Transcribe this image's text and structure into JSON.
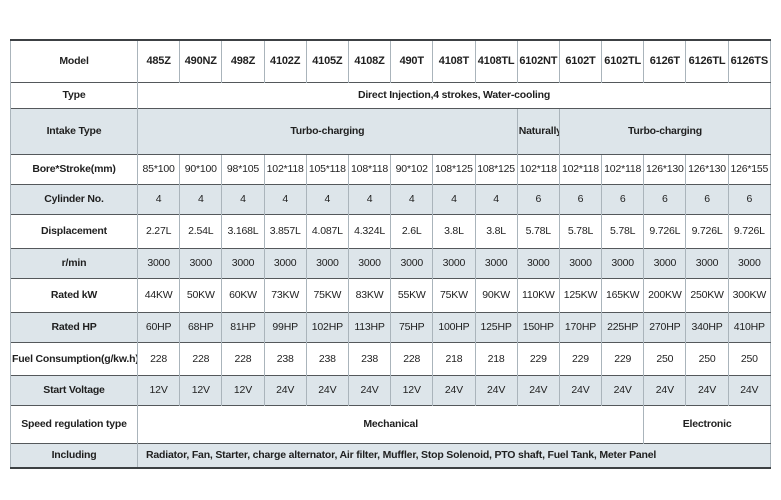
{
  "table": {
    "rows": [
      {
        "id": "model",
        "label": "Model",
        "cells": [
          "485Z",
          "490NZ",
          "498Z",
          "4102Z",
          "4105Z",
          "4108Z",
          "490T",
          "4108T",
          "4108TL",
          "6102NT",
          "6102T",
          "6102TL",
          "6126T",
          "6126TL",
          "6126TS"
        ]
      },
      {
        "id": "type",
        "label": "Type",
        "cells": [
          "Direct Injection,4 strokes, Water-cooling"
        ],
        "spans": [
          15
        ]
      },
      {
        "id": "intake",
        "label": "Intake Type",
        "cells": [
          "Turbo-charging",
          "Naturally",
          "Turbo-charging"
        ],
        "spans": [
          9,
          1,
          5
        ]
      },
      {
        "id": "bore_stroke",
        "label": "Bore*Stroke(mm)",
        "cells": [
          "85*100",
          "90*100",
          "98*105",
          "102*118",
          "105*118",
          "108*118",
          "90*102",
          "108*125",
          "108*125",
          "102*118",
          "102*118",
          "102*118",
          "126*130",
          "126*130",
          "126*155"
        ]
      },
      {
        "id": "cylinder_no",
        "label": "Cylinder No.",
        "cells": [
          "4",
          "4",
          "4",
          "4",
          "4",
          "4",
          "4",
          "4",
          "4",
          "6",
          "6",
          "6",
          "6",
          "6",
          "6"
        ]
      },
      {
        "id": "displacement",
        "label": "Displacement",
        "cells": [
          "2.27L",
          "2.54L",
          "3.168L",
          "3.857L",
          "4.087L",
          "4.324L",
          "2.6L",
          "3.8L",
          "3.8L",
          "5.78L",
          "5.78L",
          "5.78L",
          "9.726L",
          "9.726L",
          "9.726L"
        ]
      },
      {
        "id": "rpm",
        "label": "r/min",
        "cells": [
          "3000",
          "3000",
          "3000",
          "3000",
          "3000",
          "3000",
          "3000",
          "3000",
          "3000",
          "3000",
          "3000",
          "3000",
          "3000",
          "3000",
          "3000"
        ]
      },
      {
        "id": "rated_kw",
        "label": "Rated kW",
        "cells": [
          "44KW",
          "50KW",
          "60KW",
          "73KW",
          "75KW",
          "83KW",
          "55KW",
          "75KW",
          "90KW",
          "110KW",
          "125KW",
          "165KW",
          "200KW",
          "250KW",
          "300KW"
        ]
      },
      {
        "id": "rated_hp",
        "label": "Rated HP",
        "cells": [
          "60HP",
          "68HP",
          "81HP",
          "99HP",
          "102HP",
          "113HP",
          "75HP",
          "100HP",
          "125HP",
          "150HP",
          "170HP",
          "225HP",
          "270HP",
          "340HP",
          "410HP"
        ]
      },
      {
        "id": "fuel",
        "label": "Fuel Consumption(g/kw.h)",
        "cells": [
          "228",
          "228",
          "228",
          "238",
          "238",
          "238",
          "228",
          "218",
          "218",
          "229",
          "229",
          "229",
          "250",
          "250",
          "250"
        ]
      },
      {
        "id": "voltage",
        "label": "Start Voltage",
        "cells": [
          "12V",
          "12V",
          "12V",
          "24V",
          "24V",
          "24V",
          "12V",
          "24V",
          "24V",
          "24V",
          "24V",
          "24V",
          "24V",
          "24V",
          "24V"
        ]
      },
      {
        "id": "speed_reg",
        "label": "Speed regulation type",
        "cells": [
          "Mechanical",
          "Electronic"
        ],
        "spans": [
          12,
          3
        ]
      },
      {
        "id": "including",
        "label": "Including",
        "cells": [
          "Radiator, Fan, Starter, charge alternator, Air filter, Muffler, Stop Solenoid, PTO shaft, Fuel Tank, Meter Panel"
        ],
        "spans": [
          15
        ]
      }
    ],
    "colors": {
      "shaded_row": "#dde5ea",
      "horizontal_border": "#54585b",
      "vertical_border": "#aab4bb",
      "text": "#1f1f1f"
    }
  }
}
